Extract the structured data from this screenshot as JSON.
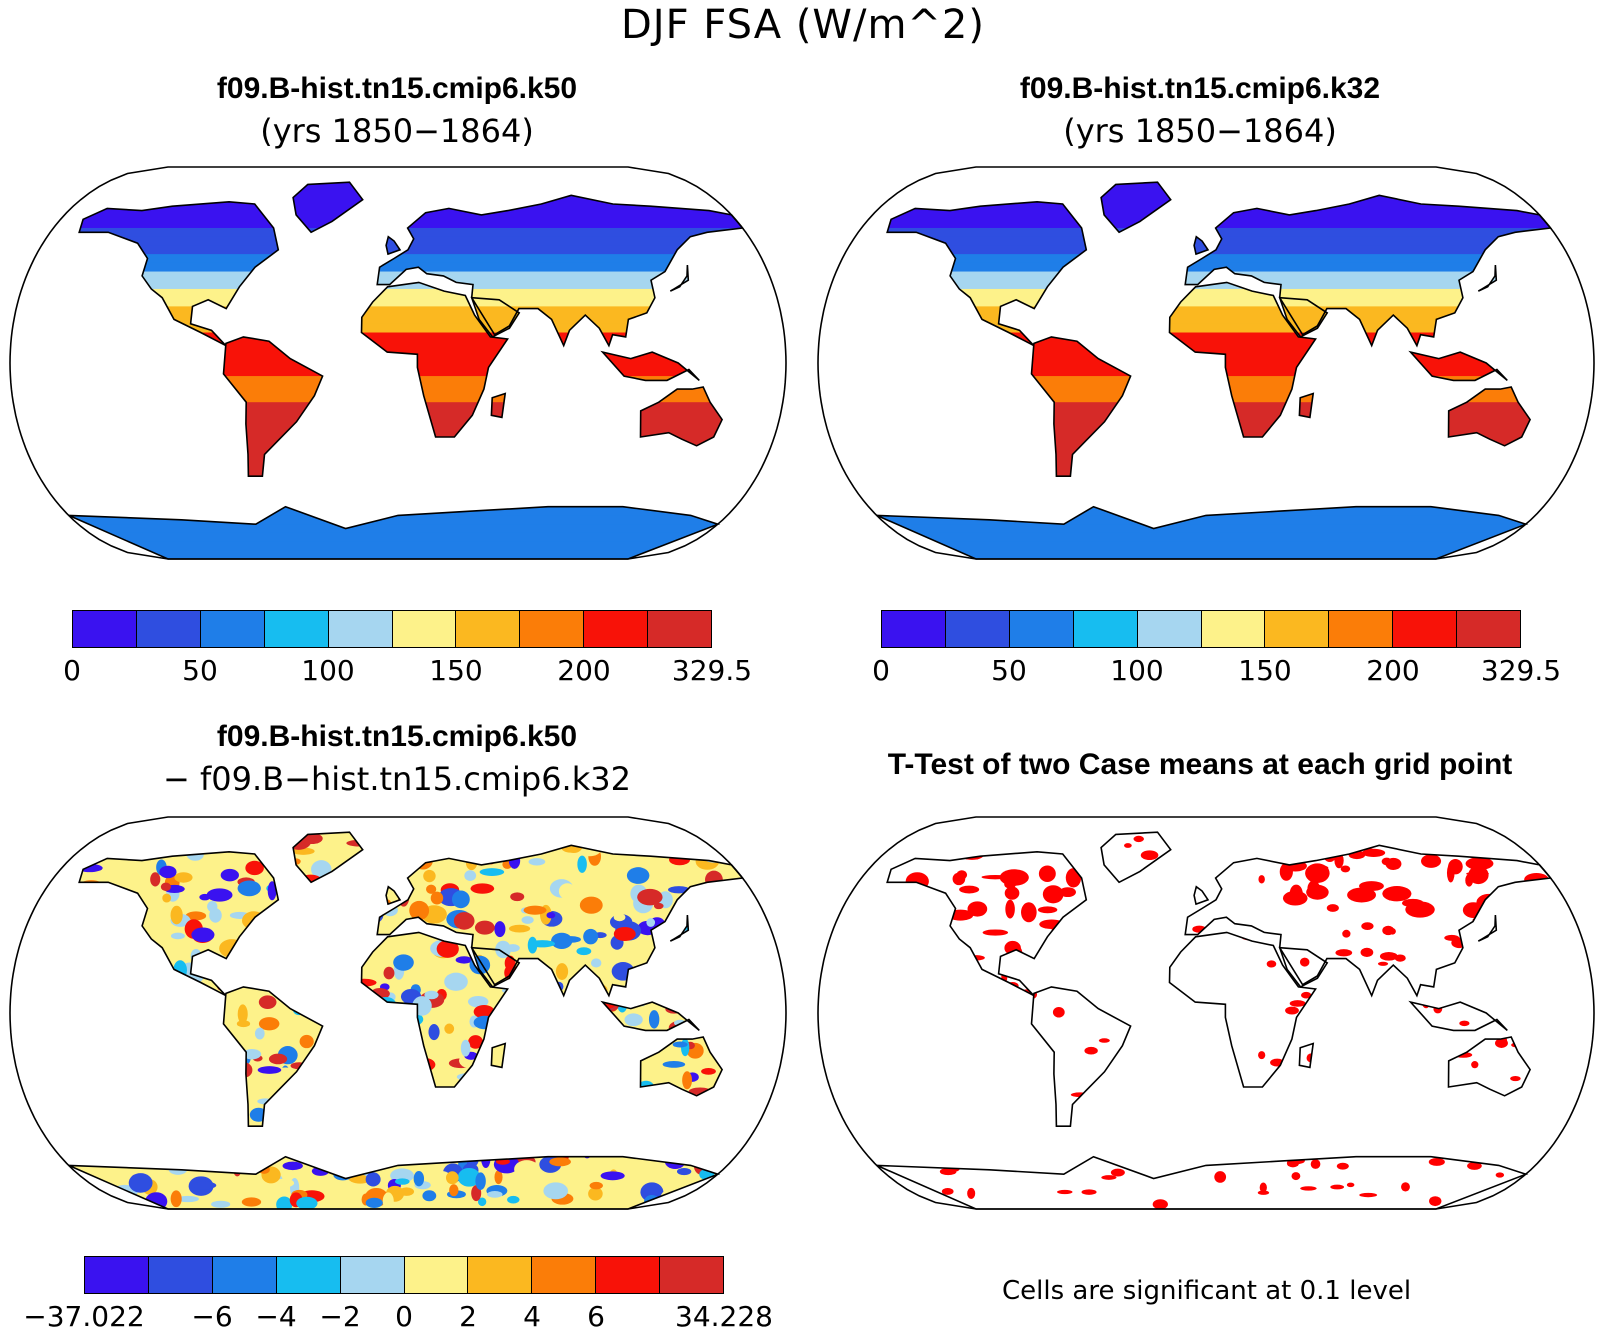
{
  "title": "DJF FSA (W/m^2)",
  "panels": [
    {
      "title": "f09.B-hist.tn15.cmip6.k50",
      "subtitle": "(yrs 1850−1864)"
    },
    {
      "title": "f09.B-hist.tn15.cmip6.k32",
      "subtitle": "(yrs 1850−1864)"
    },
    {
      "title": "f09.B-hist.tn15.cmip6.k50",
      "subtitle": "− f09.B−hist.tn15.cmip6.k32"
    },
    {
      "title": "T-Test of two Case means at each grid point",
      "subtitle": ""
    }
  ],
  "colorbars": {
    "field": {
      "colors": [
        "#3a12f0",
        "#2f4ee0",
        "#1f7ee8",
        "#17bdf0",
        "#a6d6f0",
        "#fdf28a",
        "#fbb820",
        "#fb7d08",
        "#f81208",
        "#d62a28"
      ],
      "labels": [
        "0",
        "50",
        "100",
        "150",
        "200",
        "329.5"
      ]
    },
    "diff": {
      "colors": [
        "#3a12f0",
        "#2f4ee0",
        "#1f7ee8",
        "#17bdf0",
        "#a6d6f0",
        "#fdf28a",
        "#fbb820",
        "#fb7d08",
        "#f81208",
        "#d62a28"
      ],
      "labels": [
        "−37.022",
        "−6",
        "−4",
        "−2",
        "0",
        "2",
        "4",
        "6",
        "34.228"
      ]
    }
  },
  "significance_note": "Cells are significant at 0.1 level",
  "significance_color": "#ff0000"
}
